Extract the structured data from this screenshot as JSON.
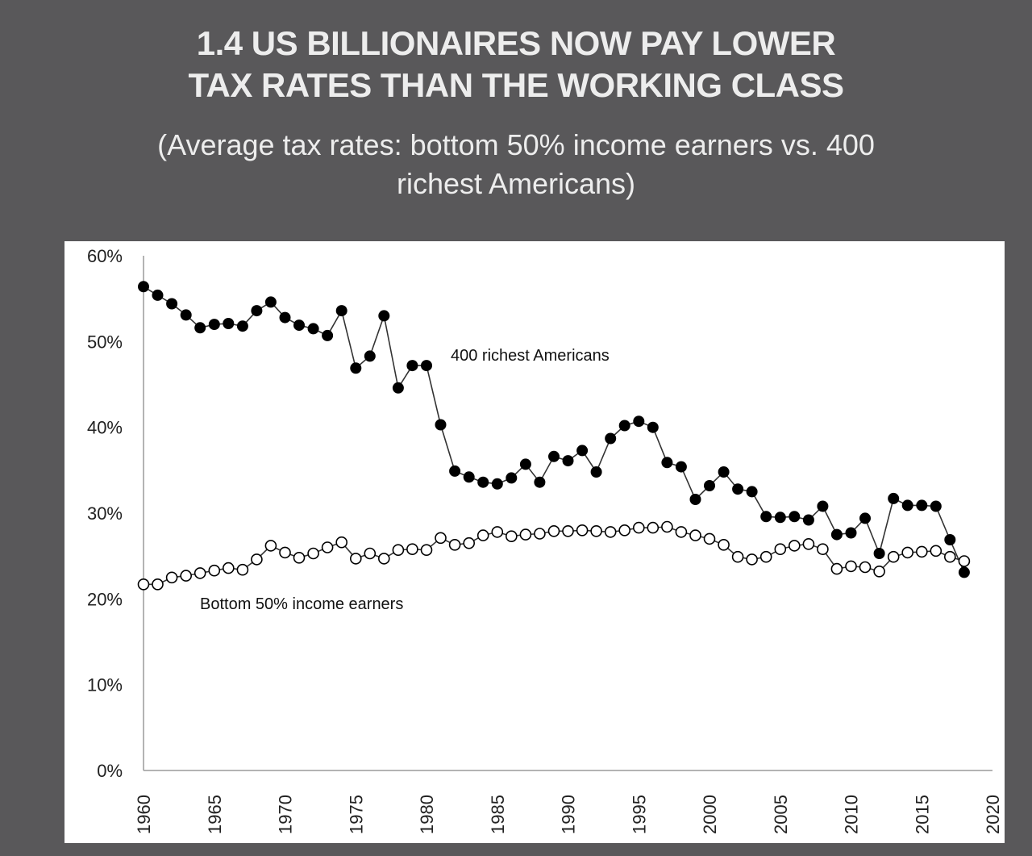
{
  "title_lines": [
    "1.4 US BILLIONAIRES NOW PAY LOWER",
    "TAX RATES THAN THE WORKING CLASS"
  ],
  "subtitle_lines": [
    "(Average tax rates: bottom 50% income earners vs. 400",
    "richest Americans)"
  ],
  "colors": {
    "background": "#59585a",
    "panel": "#ffffff",
    "title_text": "#ededed",
    "richest_marker": "#000000",
    "bottom_marker_fill": "#ffffff",
    "line": "#333333",
    "axis": "#9a9a9a"
  },
  "chart_data": {
    "type": "line",
    "title": "1.4 US BILLIONAIRES NOW PAY LOWER TAX RATES THAN THE WORKING CLASS",
    "subtitle": "(Average tax rates: bottom 50% income earners vs. 400 richest Americans)",
    "xlabel": "",
    "ylabel": "",
    "xlim": [
      1960,
      2020
    ],
    "ylim": [
      0,
      60
    ],
    "grid": false,
    "x_ticks": [
      "1960",
      "1965",
      "1970",
      "1975",
      "1980",
      "1985",
      "1990",
      "1995",
      "2000",
      "2005",
      "2010",
      "2015",
      "2020"
    ],
    "y_ticks": [
      "0%",
      "10%",
      "20%",
      "30%",
      "40%",
      "50%",
      "60%"
    ],
    "x": [
      1960,
      1961,
      1962,
      1963,
      1964,
      1965,
      1966,
      1967,
      1968,
      1969,
      1970,
      1971,
      1972,
      1973,
      1974,
      1975,
      1976,
      1977,
      1978,
      1979,
      1980,
      1981,
      1982,
      1983,
      1984,
      1985,
      1986,
      1987,
      1988,
      1989,
      1990,
      1991,
      1992,
      1993,
      1994,
      1995,
      1996,
      1997,
      1998,
      1999,
      2000,
      2001,
      2002,
      2003,
      2004,
      2005,
      2006,
      2007,
      2008,
      2009,
      2010,
      2011,
      2012,
      2013,
      2014,
      2015,
      2016,
      2017,
      2018
    ],
    "series": [
      {
        "name": "400 richest Americans",
        "marker": "filled-circle",
        "values": [
          56.4,
          55.4,
          54.4,
          53.1,
          51.6,
          52.0,
          52.1,
          51.8,
          53.6,
          54.6,
          52.8,
          51.9,
          51.5,
          50.7,
          53.6,
          46.9,
          48.3,
          53.0,
          44.6,
          47.2,
          47.2,
          40.3,
          34.9,
          34.2,
          33.6,
          33.4,
          34.1,
          35.7,
          33.6,
          36.6,
          36.1,
          37.3,
          34.8,
          38.7,
          40.2,
          40.7,
          40.0,
          35.9,
          35.4,
          31.6,
          33.2,
          34.8,
          32.8,
          32.5,
          29.6,
          29.5,
          29.6,
          29.2,
          30.8,
          27.5,
          27.7,
          29.4,
          25.3,
          31.7,
          30.9,
          30.9,
          30.8,
          26.9,
          23.1
        ]
      },
      {
        "name": "Bottom 50% income earners",
        "marker": "open-circle",
        "values": [
          21.7,
          21.7,
          22.5,
          22.7,
          23.0,
          23.3,
          23.6,
          23.4,
          24.6,
          26.2,
          25.4,
          24.8,
          25.3,
          26.0,
          26.6,
          24.7,
          25.3,
          24.7,
          25.7,
          25.8,
          25.7,
          27.1,
          26.3,
          26.5,
          27.4,
          27.8,
          27.3,
          27.5,
          27.6,
          27.9,
          27.9,
          28.0,
          27.9,
          27.8,
          28.0,
          28.3,
          28.3,
          28.4,
          27.8,
          27.4,
          27.0,
          26.3,
          24.9,
          24.6,
          24.9,
          25.8,
          26.2,
          26.4,
          25.8,
          23.5,
          23.8,
          23.7,
          23.2,
          24.9,
          25.4,
          25.5,
          25.6,
          24.9,
          24.4
        ]
      }
    ],
    "annotations": [
      "400 richest Americans",
      "Bottom 50% income earners"
    ]
  }
}
